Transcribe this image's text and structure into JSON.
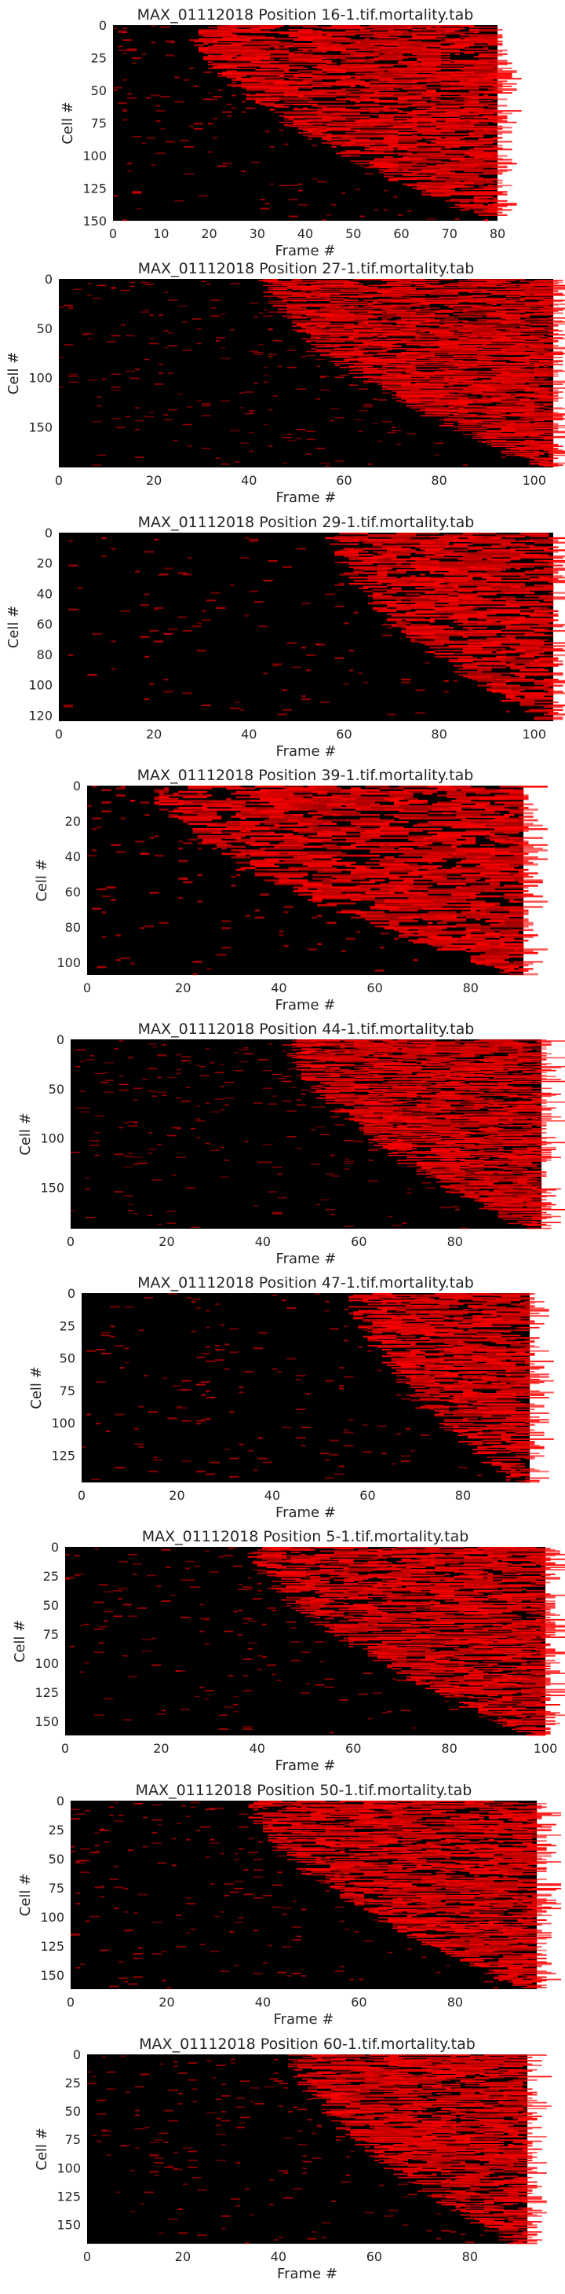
{
  "figure": {
    "background": "#ffffff",
    "heat_low": "#000000",
    "heat_high": "#ff0000"
  },
  "chart_data": [
    {
      "type": "heatmap",
      "title": "MAX_01112018 Position 16-1.tif.mortality.tab",
      "xlabel": "Frame #",
      "ylabel": "Cell #",
      "n_frames": 81,
      "n_cells": 152,
      "xlim": [
        0,
        80
      ],
      "ylim": [
        0,
        150
      ],
      "xticks": [
        0,
        10,
        20,
        30,
        40,
        50,
        60,
        70,
        80
      ],
      "yticks": [
        0,
        25,
        50,
        75,
        100,
        125,
        150
      ],
      "onset_frame_range": [
        17,
        80
      ]
    },
    {
      "type": "heatmap",
      "title": "MAX_01112018 Position 27-1.tif.mortality.tab",
      "xlabel": "Frame #",
      "ylabel": "Cell #",
      "n_frames": 104,
      "n_cells": 191,
      "xlim": [
        0,
        104
      ],
      "ylim": [
        0,
        191
      ],
      "xticks": [
        0,
        20,
        40,
        60,
        80,
        100
      ],
      "yticks": [
        0,
        50,
        100,
        150
      ],
      "onset_frame_range": [
        44,
        102
      ]
    },
    {
      "type": "heatmap",
      "title": "MAX_01112018 Position 29-1.tif.mortality.tab",
      "xlabel": "Frame #",
      "ylabel": "Cell #",
      "n_frames": 104,
      "n_cells": 124,
      "xlim": [
        0,
        104
      ],
      "ylim": [
        0,
        124
      ],
      "xticks": [
        0,
        20,
        40,
        60,
        80,
        100
      ],
      "yticks": [
        0,
        20,
        40,
        60,
        80,
        100,
        120
      ],
      "onset_frame_range": [
        58,
        102
      ]
    },
    {
      "type": "heatmap",
      "title": "MAX_01112018 Position 39-1.tif.mortality.tab",
      "xlabel": "Frame #",
      "ylabel": "Cell #",
      "n_frames": 91,
      "n_cells": 107,
      "xlim": [
        0,
        91
      ],
      "ylim": [
        0,
        107
      ],
      "xticks": [
        0,
        20,
        40,
        60,
        80
      ],
      "yticks": [
        0,
        20,
        40,
        60,
        80,
        100
      ],
      "onset_frame_range": [
        15,
        89
      ]
    },
    {
      "type": "heatmap",
      "title": "MAX_01112018 Position 44-1.tif.mortality.tab",
      "xlabel": "Frame #",
      "ylabel": "Cell #",
      "n_frames": 98,
      "n_cells": 192,
      "xlim": [
        0,
        98
      ],
      "ylim": [
        0,
        192
      ],
      "xticks": [
        0,
        20,
        40,
        60,
        80
      ],
      "yticks": [
        0,
        50,
        100,
        150
      ],
      "onset_frame_range": [
        46,
        95
      ]
    },
    {
      "type": "heatmap",
      "title": "MAX_01112018 Position 47-1.tif.mortality.tab",
      "xlabel": "Frame #",
      "ylabel": "Cell #",
      "n_frames": 94,
      "n_cells": 146,
      "xlim": [
        0,
        94
      ],
      "ylim": [
        0,
        146
      ],
      "xticks": [
        0,
        20,
        40,
        60,
        80
      ],
      "yticks": [
        0,
        25,
        50,
        75,
        100,
        125
      ],
      "onset_frame_range": [
        58,
        92
      ]
    },
    {
      "type": "heatmap",
      "title": "MAX_01112018 Position 5-1.tif.mortality.tab",
      "xlabel": "Frame #",
      "ylabel": "Cell #",
      "n_frames": 100,
      "n_cells": 162,
      "xlim": [
        0,
        100
      ],
      "ylim": [
        0,
        162
      ],
      "xticks": [
        0,
        20,
        40,
        60,
        80,
        100
      ],
      "yticks": [
        0,
        25,
        50,
        75,
        100,
        125,
        150
      ],
      "onset_frame_range": [
        40,
        98
      ]
    },
    {
      "type": "heatmap",
      "title": "MAX_01112018 Position 50-1.tif.mortality.tab",
      "xlabel": "Frame #",
      "ylabel": "Cell #",
      "n_frames": 97,
      "n_cells": 162,
      "xlim": [
        0,
        97
      ],
      "ylim": [
        0,
        162
      ],
      "xticks": [
        0,
        20,
        40,
        60,
        80
      ],
      "yticks": [
        0,
        25,
        50,
        75,
        100,
        125,
        150
      ],
      "onset_frame_range": [
        38,
        95
      ]
    },
    {
      "type": "heatmap",
      "title": "MAX_01112018 Position 60-1.tif.mortality.tab",
      "xlabel": "Frame #",
      "ylabel": "Cell #",
      "n_frames": 92,
      "n_cells": 167,
      "xlim": [
        0,
        92
      ],
      "ylim": [
        0,
        167
      ],
      "xticks": [
        0,
        20,
        40,
        60,
        80
      ],
      "yticks": [
        0,
        25,
        50,
        75,
        100,
        125,
        150
      ],
      "onset_frame_range": [
        44,
        90
      ]
    }
  ]
}
